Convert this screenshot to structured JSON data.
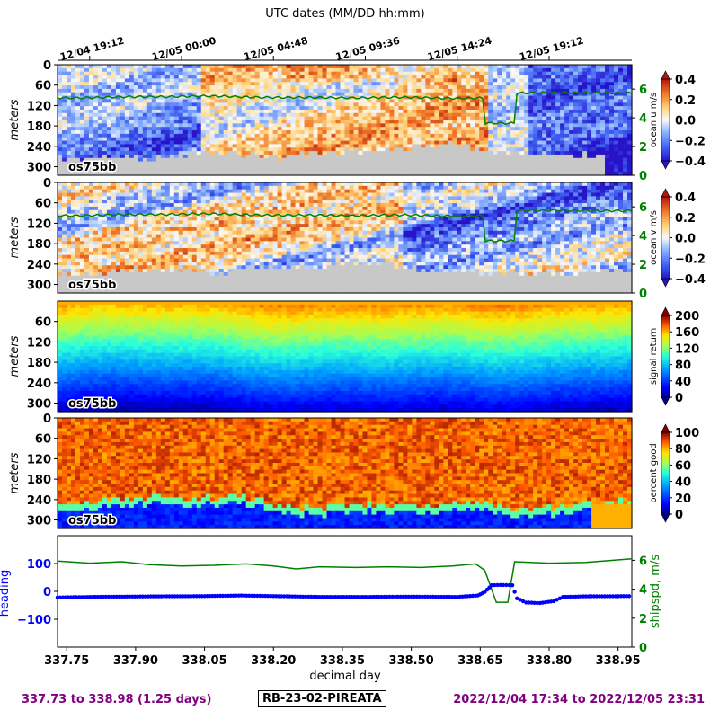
{
  "chart_data": {
    "type": "heatmap",
    "top_axis": {
      "label": "UTC dates (MM/DD hh:mm)",
      "ticks": [
        {
          "x": 337.8,
          "label": "12/04 19:12"
        },
        {
          "x": 338.0,
          "label": "12/05 00:00"
        },
        {
          "x": 338.2,
          "label": "12/05 04:48"
        },
        {
          "x": 338.4,
          "label": "12/05 09:36"
        },
        {
          "x": 338.6,
          "label": "12/05 14:24"
        },
        {
          "x": 338.8,
          "label": "12/05 19:12"
        }
      ]
    },
    "x_axis": {
      "label": "decimal day",
      "range": [
        337.73,
        338.98
      ],
      "ticks": [
        337.75,
        337.9,
        338.05,
        338.2,
        338.35,
        338.5,
        338.65,
        338.8,
        338.95
      ]
    },
    "panels": [
      {
        "name": "ocean-u",
        "ylabel": "meters",
        "yticks": [
          0,
          60,
          120,
          180,
          240,
          300
        ],
        "yrange": [
          0,
          325
        ],
        "instrument_label": "os75bb",
        "colorbar_label": "ocean u m/s",
        "colorbar_ticks": [
          "0.4",
          "0.2",
          "0.0",
          "−0.2",
          "−0.4"
        ],
        "colormap": "blue-white-red",
        "right_axis_ticks": [
          "6",
          "4",
          "2",
          "0"
        ],
        "overlay_line_color": "#008000"
      },
      {
        "name": "ocean-v",
        "ylabel": "meters",
        "yticks": [
          0,
          60,
          120,
          180,
          240,
          300
        ],
        "yrange": [
          0,
          325
        ],
        "instrument_label": "os75bb",
        "colorbar_label": "ocean v m/s",
        "colorbar_ticks": [
          "0.4",
          "0.2",
          "0.0",
          "−0.2",
          "−0.4"
        ],
        "colormap": "blue-white-red",
        "right_axis_ticks": [
          "6",
          "4",
          "2",
          "0"
        ],
        "overlay_line_color": "#008000"
      },
      {
        "name": "signal-return",
        "ylabel": "meters",
        "yticks": [
          60,
          120,
          180,
          240,
          300
        ],
        "yrange": [
          0,
          325
        ],
        "instrument_label": "os75bb",
        "colorbar_label": "signal return",
        "colorbar_ticks": [
          "200",
          "160",
          "120",
          "80",
          "40",
          "0"
        ],
        "colormap": "jet"
      },
      {
        "name": "percent-good",
        "ylabel": "meters",
        "yticks": [
          0,
          60,
          120,
          180,
          240,
          300
        ],
        "yrange": [
          0,
          325
        ],
        "instrument_label": "os75bb",
        "colorbar_label": "percent good",
        "colorbar_ticks": [
          "100",
          "80",
          "60",
          "40",
          "20",
          "0"
        ],
        "colormap": "jet"
      }
    ],
    "bottom_panel": {
      "left_label": "heading",
      "left_ticks": [
        "100",
        "0",
        "−100"
      ],
      "left_range": [
        -200,
        200
      ],
      "right_label": "shipspd, m/s",
      "right_ticks": [
        "6",
        "4",
        "2",
        "0"
      ],
      "right_range": [
        0,
        7.7
      ],
      "heading_color": "#0000ff",
      "shipspd_color": "#008000",
      "shipspd_series": [
        {
          "x": 337.73,
          "y": 5.95
        },
        {
          "x": 337.8,
          "y": 5.8
        },
        {
          "x": 337.87,
          "y": 5.9
        },
        {
          "x": 337.93,
          "y": 5.7
        },
        {
          "x": 338.0,
          "y": 5.6
        },
        {
          "x": 338.07,
          "y": 5.65
        },
        {
          "x": 338.14,
          "y": 5.75
        },
        {
          "x": 338.2,
          "y": 5.6
        },
        {
          "x": 338.25,
          "y": 5.4
        },
        {
          "x": 338.3,
          "y": 5.55
        },
        {
          "x": 338.38,
          "y": 5.5
        },
        {
          "x": 338.45,
          "y": 5.55
        },
        {
          "x": 338.52,
          "y": 5.5
        },
        {
          "x": 338.59,
          "y": 5.6
        },
        {
          "x": 338.64,
          "y": 5.75
        },
        {
          "x": 338.66,
          "y": 5.3
        },
        {
          "x": 338.685,
          "y": 3.1
        },
        {
          "x": 338.71,
          "y": 3.1
        },
        {
          "x": 338.725,
          "y": 5.9
        },
        {
          "x": 338.8,
          "y": 5.8
        },
        {
          "x": 338.88,
          "y": 5.85
        },
        {
          "x": 338.98,
          "y": 6.1
        }
      ],
      "heading_series": [
        {
          "x": 337.73,
          "y": -22
        },
        {
          "x": 337.8,
          "y": -20
        },
        {
          "x": 337.87,
          "y": -19
        },
        {
          "x": 337.95,
          "y": -18
        },
        {
          "x": 338.05,
          "y": -17
        },
        {
          "x": 338.13,
          "y": -15
        },
        {
          "x": 338.2,
          "y": -17
        },
        {
          "x": 338.3,
          "y": -20
        },
        {
          "x": 338.4,
          "y": -20
        },
        {
          "x": 338.5,
          "y": -19
        },
        {
          "x": 338.6,
          "y": -20
        },
        {
          "x": 338.645,
          "y": -15
        },
        {
          "x": 338.66,
          "y": -2
        },
        {
          "x": 338.675,
          "y": 22
        },
        {
          "x": 338.7,
          "y": 23
        },
        {
          "x": 338.72,
          "y": 22
        },
        {
          "x": 338.73,
          "y": -25
        },
        {
          "x": 338.75,
          "y": -40
        },
        {
          "x": 338.78,
          "y": -42
        },
        {
          "x": 338.81,
          "y": -35
        },
        {
          "x": 338.83,
          "y": -20
        },
        {
          "x": 338.88,
          "y": -18
        },
        {
          "x": 338.98,
          "y": -17
        }
      ]
    }
  },
  "footer": {
    "left": "337.73 to 338.98 (1.25 days)",
    "center": "RB-23-02-PIREATA",
    "right": "2022/12/04 17:34 to 2022/12/05 23:31"
  }
}
